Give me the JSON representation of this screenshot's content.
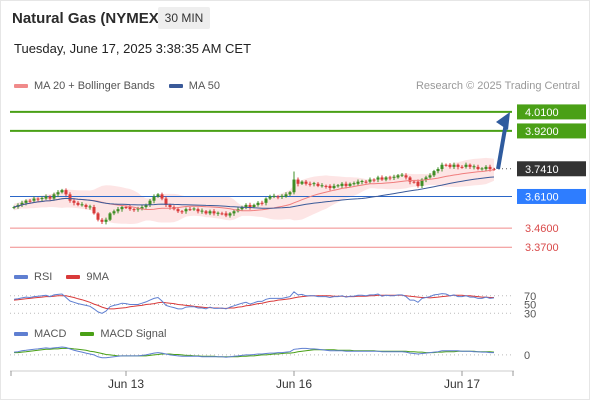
{
  "header": {
    "title": "Natural Gas (NYMEX)",
    "timeframe": "30 MIN",
    "datetime": "Tuesday, June 17, 2025 3:38:35 AM CET"
  },
  "credit": "Research © 2025 Trading Central",
  "colors": {
    "up": "#3e8e25",
    "down": "#d93a3a",
    "pivot": "#2e7dff",
    "support": "#f08a8a",
    "resistance": "#4aa016",
    "ma50": "#3a5a99",
    "ma20": "#f08a8a",
    "band": "#fde1e1",
    "arrow": "#2f5b9e",
    "rsi": "#5f7fd1",
    "rsima": "#d93a3a",
    "macd": "#5f7fd1",
    "signal": "#4aa016"
  },
  "chart_data": [
    {
      "type": "candlestick",
      "legend": [
        {
          "name": "MA 20 + Bollinger Bands",
          "color": "#f08a8a"
        },
        {
          "name": "MA 50",
          "color": "#3a5a99"
        }
      ],
      "x_ticks": [
        {
          "label": "Jun 13",
          "index": 28
        },
        {
          "label": "Jun 16",
          "index": 70
        },
        {
          "label": "Jun 17",
          "index": 112
        }
      ],
      "ylim": [
        3.3,
        4.09
      ],
      "last_price": 3.741,
      "levels": [
        {
          "value": 4.01,
          "label": "4.0100",
          "kind": "resistance"
        },
        {
          "value": 3.92,
          "label": "3.9200",
          "kind": "resistance"
        },
        {
          "value": 3.741,
          "label": "3.7410",
          "kind": "last"
        },
        {
          "value": 3.61,
          "label": "3.6100",
          "kind": "pivot"
        },
        {
          "value": 3.46,
          "label": "3.4600",
          "kind": "support"
        },
        {
          "value": 3.37,
          "label": "3.3700",
          "kind": "support"
        }
      ],
      "arrow": {
        "from": 3.74,
        "to": 4.0
      },
      "close": [
        3.56,
        3.57,
        3.58,
        3.59,
        3.59,
        3.6,
        3.6,
        3.6,
        3.61,
        3.6,
        3.62,
        3.63,
        3.64,
        3.62,
        3.59,
        3.58,
        3.57,
        3.57,
        3.56,
        3.56,
        3.53,
        3.5,
        3.49,
        3.5,
        3.53,
        3.54,
        3.55,
        3.56,
        3.56,
        3.55,
        3.55,
        3.55,
        3.56,
        3.57,
        3.59,
        3.61,
        3.62,
        3.6,
        3.57,
        3.56,
        3.55,
        3.54,
        3.54,
        3.55,
        3.55,
        3.55,
        3.54,
        3.54,
        3.53,
        3.54,
        3.53,
        3.53,
        3.53,
        3.52,
        3.53,
        3.54,
        3.55,
        3.56,
        3.57,
        3.56,
        3.57,
        3.58,
        3.58,
        3.6,
        3.61,
        3.61,
        3.61,
        3.61,
        3.62,
        3.63,
        3.69,
        3.67,
        3.68,
        3.67,
        3.67,
        3.67,
        3.66,
        3.66,
        3.66,
        3.65,
        3.66,
        3.66,
        3.67,
        3.66,
        3.67,
        3.67,
        3.68,
        3.68,
        3.68,
        3.69,
        3.69,
        3.7,
        3.69,
        3.7,
        3.7,
        3.7,
        3.71,
        3.71,
        3.7,
        3.68,
        3.68,
        3.66,
        3.69,
        3.7,
        3.71,
        3.73,
        3.74,
        3.76,
        3.76,
        3.75,
        3.76,
        3.75,
        3.75,
        3.76,
        3.75,
        3.75,
        3.74,
        3.74,
        3.75,
        3.74,
        3.74
      ]
    },
    {
      "type": "line",
      "name": "RSI",
      "legend": [
        {
          "name": "RSI",
          "color": "#5f7fd1"
        },
        {
          "name": "9MA",
          "color": "#d93a3a"
        }
      ],
      "ticks": [
        {
          "value": 70,
          "label": "70"
        },
        {
          "value": 50,
          "label": "50"
        },
        {
          "value": 30,
          "label": "30"
        }
      ],
      "ylim": [
        10,
        90
      ],
      "values": [
        62,
        63,
        65,
        67,
        66,
        68,
        69,
        70,
        71,
        68,
        72,
        73,
        74,
        66,
        58,
        55,
        52,
        50,
        48,
        46,
        40,
        33,
        30,
        35,
        45,
        48,
        50,
        53,
        52,
        50,
        50,
        50,
        53,
        56,
        60,
        64,
        66,
        58,
        48,
        45,
        43,
        40,
        40,
        44,
        45,
        45,
        42,
        42,
        40,
        44,
        41,
        41,
        42,
        40,
        44,
        47,
        50,
        53,
        55,
        51,
        54,
        57,
        57,
        62,
        64,
        64,
        64,
        64,
        66,
        68,
        79,
        72,
        73,
        70,
        70,
        70,
        68,
        68,
        68,
        66,
        68,
        68,
        70,
        67,
        69,
        69,
        71,
        71,
        70,
        72,
        72,
        74,
        69,
        71,
        70,
        70,
        72,
        72,
        68,
        60,
        60,
        55,
        64,
        66,
        68,
        72,
        73,
        75,
        74,
        70,
        72,
        68,
        68,
        70,
        67,
        67,
        64,
        64,
        67,
        64,
        65
      ],
      "ma": [
        60,
        61,
        62,
        63,
        64,
        65,
        66,
        67,
        68,
        68,
        69,
        70,
        70,
        70,
        68,
        66,
        63,
        61,
        58,
        55,
        51,
        48,
        44,
        41,
        40,
        40,
        41,
        42,
        43,
        45,
        46,
        47,
        48,
        50,
        51,
        52,
        54,
        55,
        54,
        53,
        52,
        50,
        49,
        48,
        47,
        46,
        45,
        44,
        43,
        43,
        42,
        42,
        41,
        41,
        42,
        42,
        44,
        45,
        47,
        48,
        50,
        52,
        53,
        55,
        57,
        58,
        60,
        61,
        62,
        63,
        65,
        67,
        68,
        69,
        70,
        70,
        70,
        70,
        70,
        70,
        69,
        69,
        69,
        68,
        68,
        68,
        69,
        69,
        69,
        70,
        70,
        71,
        71,
        71,
        71,
        71,
        71,
        71,
        70,
        69,
        68,
        67,
        66,
        66,
        65,
        66,
        67,
        68,
        69,
        70,
        71,
        71,
        71,
        70,
        70,
        69,
        68,
        67,
        67,
        66,
        66
      ]
    },
    {
      "type": "line",
      "name": "MACD",
      "legend": [
        {
          "name": "MACD",
          "color": "#5f7fd1"
        },
        {
          "name": "MACD Signal",
          "color": "#4aa016"
        }
      ],
      "ticks": [
        {
          "value": 0,
          "label": "0"
        }
      ],
      "ylim": [
        -0.028,
        0.032
      ],
      "values": [
        0.006,
        0.007,
        0.009,
        0.01,
        0.011,
        0.012,
        0.013,
        0.014,
        0.015,
        0.014,
        0.015,
        0.016,
        0.017,
        0.016,
        0.013,
        0.01,
        0.008,
        0.006,
        0.004,
        0.002,
        0.0,
        -0.004,
        -0.006,
        -0.006,
        -0.005,
        -0.004,
        -0.003,
        -0.002,
        -0.002,
        -0.002,
        -0.002,
        -0.002,
        -0.001,
        0.0,
        0.002,
        0.004,
        0.005,
        0.004,
        0.002,
        0.0,
        -0.001,
        -0.002,
        -0.003,
        -0.003,
        -0.003,
        -0.003,
        -0.003,
        -0.004,
        -0.004,
        -0.004,
        -0.004,
        -0.004,
        -0.004,
        -0.005,
        -0.004,
        -0.003,
        -0.002,
        -0.001,
        0.0,
        0.0,
        0.001,
        0.002,
        0.002,
        0.003,
        0.004,
        0.004,
        0.005,
        0.005,
        0.006,
        0.007,
        0.012,
        0.013,
        0.014,
        0.014,
        0.013,
        0.013,
        0.012,
        0.011,
        0.01,
        0.009,
        0.009,
        0.009,
        0.009,
        0.008,
        0.008,
        0.008,
        0.008,
        0.008,
        0.008,
        0.008,
        0.008,
        0.008,
        0.007,
        0.007,
        0.007,
        0.007,
        0.007,
        0.007,
        0.006,
        0.004,
        0.003,
        0.002,
        0.003,
        0.004,
        0.005,
        0.006,
        0.007,
        0.009,
        0.009,
        0.009,
        0.009,
        0.009,
        0.008,
        0.008,
        0.008,
        0.007,
        0.007,
        0.006,
        0.006,
        0.005,
        0.005
      ],
      "signal": [
        0.005,
        0.005,
        0.006,
        0.007,
        0.008,
        0.009,
        0.01,
        0.011,
        0.012,
        0.012,
        0.013,
        0.013,
        0.014,
        0.014,
        0.014,
        0.013,
        0.012,
        0.011,
        0.01,
        0.008,
        0.007,
        0.005,
        0.003,
        0.001,
        0.0,
        -0.001,
        -0.002,
        -0.002,
        -0.002,
        -0.002,
        -0.002,
        -0.002,
        -0.002,
        -0.002,
        -0.001,
        0.0,
        0.001,
        0.002,
        0.002,
        0.002,
        0.001,
        0.001,
        0.0,
        -0.001,
        -0.001,
        -0.002,
        -0.002,
        -0.003,
        -0.003,
        -0.003,
        -0.003,
        -0.004,
        -0.004,
        -0.004,
        -0.004,
        -0.004,
        -0.004,
        -0.003,
        -0.003,
        -0.002,
        -0.002,
        -0.001,
        0.0,
        0.0,
        0.001,
        0.002,
        0.002,
        0.003,
        0.004,
        0.004,
        0.005,
        0.007,
        0.008,
        0.009,
        0.01,
        0.011,
        0.011,
        0.011,
        0.011,
        0.011,
        0.011,
        0.01,
        0.01,
        0.01,
        0.01,
        0.009,
        0.009,
        0.009,
        0.009,
        0.009,
        0.009,
        0.008,
        0.008,
        0.008,
        0.008,
        0.008,
        0.008,
        0.008,
        0.008,
        0.007,
        0.007,
        0.006,
        0.006,
        0.005,
        0.005,
        0.005,
        0.006,
        0.006,
        0.007,
        0.007,
        0.007,
        0.008,
        0.008,
        0.008,
        0.008,
        0.008,
        0.007,
        0.007,
        0.007,
        0.007,
        0.006
      ]
    }
  ]
}
